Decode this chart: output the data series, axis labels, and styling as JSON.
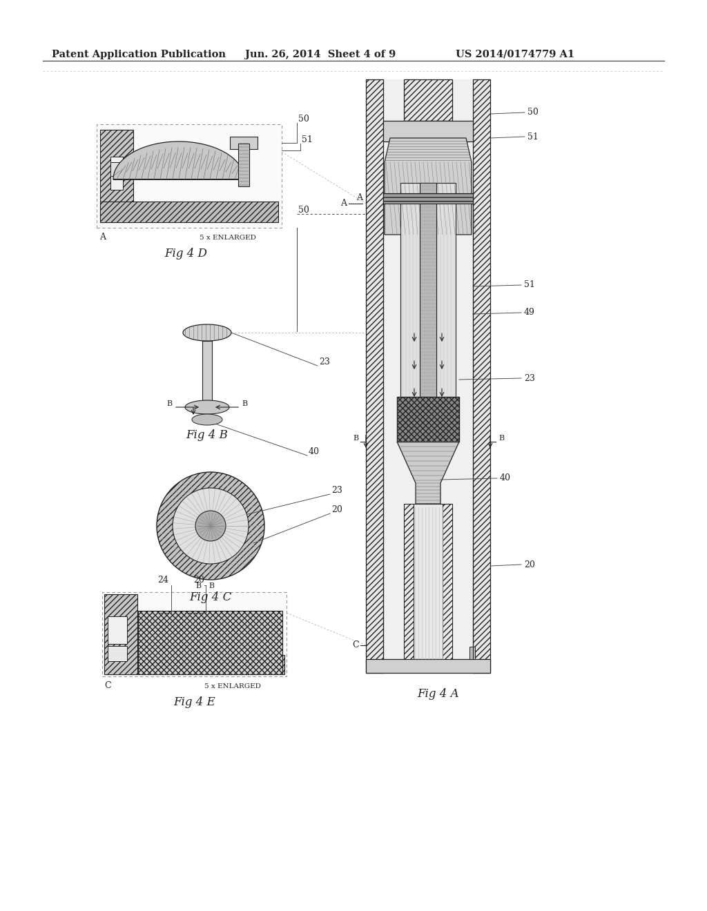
{
  "bg_color": "#ffffff",
  "header_text_left": "Patent Application Publication",
  "header_text_mid": "Jun. 26, 2014  Sheet 4 of 9",
  "header_text_right": "US 2014/0174779 A1",
  "header_fontsize": 10.5,
  "fig_label_fontsize": 12,
  "annotation_fontsize": 9,
  "label_fontsize": 9,
  "line_color": "#444444",
  "dark_color": "#222222",
  "light_gray": "#e8e8e8",
  "mid_gray": "#aaaaaa",
  "dark_gray": "#666666"
}
